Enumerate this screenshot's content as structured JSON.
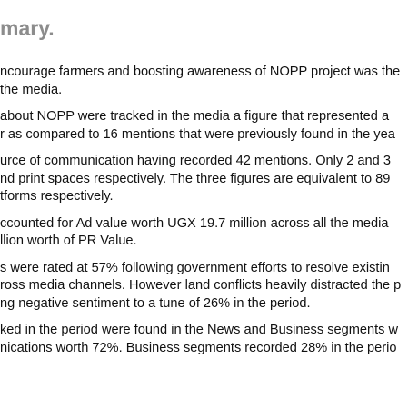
{
  "title": "mary.",
  "paragraphs": [
    {
      "lines": [
        "ncourage farmers and boosting awareness of NOPP project was the",
        "the media."
      ]
    },
    {
      "lines": [
        "about NOPP were tracked in the media a figure that represented a",
        "r as compared to 16 mentions that were previously found in the yea"
      ]
    },
    {
      "lines": [
        "urce of communication having recorded 42 mentions. Only 2 and 3",
        "nd print spaces respectively. The three figures are equivalent to 89",
        "tforms respectively."
      ]
    },
    {
      "lines": [
        "ccounted for Ad value worth UGX 19.7 million across all the media",
        "llion worth of PR Value."
      ]
    },
    {
      "lines": [
        "s were rated at 57% following government efforts to resolve existin",
        "ross media channels. However land conflicts heavily distracted the p",
        "ng negative sentiment to a tune of 26% in the period."
      ]
    },
    {
      "lines": [
        "ked in the period were found in the News and Business segments w",
        "nications worth 72%. Business segments recorded 28% in the perio"
      ]
    }
  ]
}
